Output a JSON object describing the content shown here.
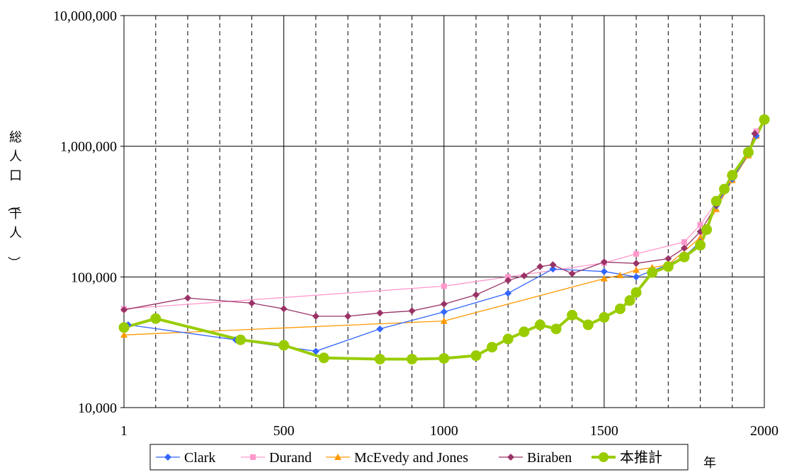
{
  "chart_data": {
    "type": "line",
    "title": "",
    "xlabel": "年",
    "ylabel": "総人口（千人）",
    "y_scale": "log",
    "xlim": [
      1,
      2000
    ],
    "ylim": [
      10000,
      10000000
    ],
    "x_ticks": [
      "1",
      "500",
      "1000",
      "1500",
      "2000"
    ],
    "y_ticks": [
      "10,000",
      "100,000",
      "1,000,000",
      "10,000,000"
    ],
    "grid": "vertical dashed every 100 years; solid at 500-year marks and at each decade of y",
    "legend_position": "bottom",
    "series": [
      {
        "name": "Clark",
        "color": "#3366ff",
        "marker": "diamond",
        "points": [
          [
            14,
            43000
          ],
          [
            350,
            33000
          ],
          [
            600,
            27000
          ],
          [
            800,
            40000
          ],
          [
            1000,
            54000
          ],
          [
            1200,
            75000
          ],
          [
            1340,
            115000
          ],
          [
            1500,
            110000
          ],
          [
            1600,
            100000
          ],
          [
            1700,
            124000
          ],
          [
            1750,
            143000
          ],
          [
            1800,
            185000
          ],
          [
            1850,
            350000
          ],
          [
            1900,
            560000
          ],
          [
            1950,
            870000
          ],
          [
            1975,
            1200000
          ],
          [
            2000,
            1570000
          ]
        ]
      },
      {
        "name": "Durand",
        "color": "#ff99cc",
        "marker": "square",
        "points": [
          [
            1,
            57000
          ],
          [
            1000,
            85000
          ],
          [
            1200,
            100000
          ],
          [
            1500,
            128000
          ],
          [
            1600,
            150000
          ],
          [
            1750,
            185000
          ],
          [
            1800,
            250000
          ],
          [
            1900,
            560000
          ],
          [
            1950,
            870000
          ],
          [
            1975,
            1300000
          ],
          [
            2000,
            1570000
          ]
        ]
      },
      {
        "name": "McEvedy and Jones",
        "color": "#ff9900",
        "marker": "triangle",
        "points": [
          [
            1,
            36000
          ],
          [
            1000,
            46000
          ],
          [
            1500,
            97000
          ],
          [
            1550,
            103000
          ],
          [
            1600,
            113000
          ],
          [
            1650,
            118000
          ],
          [
            1700,
            124000
          ],
          [
            1800,
            200000
          ],
          [
            1850,
            330000
          ],
          [
            1900,
            550000
          ],
          [
            1950,
            850000
          ],
          [
            1975,
            1200000
          ],
          [
            2000,
            1570000
          ]
        ]
      },
      {
        "name": "Biraben",
        "color": "#993366",
        "marker": "diamond",
        "points": [
          [
            1,
            56000
          ],
          [
            200,
            69000
          ],
          [
            400,
            63000
          ],
          [
            500,
            57000
          ],
          [
            600,
            50000
          ],
          [
            700,
            50000
          ],
          [
            800,
            53000
          ],
          [
            900,
            55000
          ],
          [
            1000,
            62000
          ],
          [
            1100,
            73000
          ],
          [
            1200,
            94000
          ],
          [
            1250,
            102000
          ],
          [
            1300,
            120000
          ],
          [
            1340,
            124000
          ],
          [
            1400,
            106000
          ],
          [
            1500,
            130000
          ],
          [
            1600,
            127000
          ],
          [
            1700,
            138000
          ],
          [
            1750,
            166000
          ],
          [
            1800,
            222000
          ],
          [
            1850,
            355000
          ],
          [
            1900,
            580000
          ],
          [
            1950,
            900000
          ],
          [
            1970,
            1250000
          ],
          [
            2000,
            1570000
          ]
        ]
      },
      {
        "name": "本推計",
        "color": "#99cc00",
        "marker": "circle",
        "points": [
          [
            1,
            41000
          ],
          [
            100,
            48000
          ],
          [
            365,
            33000
          ],
          [
            500,
            30000
          ],
          [
            625,
            24000
          ],
          [
            800,
            23500
          ],
          [
            900,
            23500
          ],
          [
            1000,
            23800
          ],
          [
            1100,
            25000
          ],
          [
            1150,
            29000
          ],
          [
            1200,
            33500
          ],
          [
            1250,
            38000
          ],
          [
            1300,
            43000
          ],
          [
            1350,
            40000
          ],
          [
            1400,
            51000
          ],
          [
            1450,
            43000
          ],
          [
            1500,
            49000
          ],
          [
            1550,
            57000
          ],
          [
            1580,
            66000
          ],
          [
            1600,
            76000
          ],
          [
            1650,
            108000
          ],
          [
            1700,
            120000
          ],
          [
            1750,
            142000
          ],
          [
            1800,
            175000
          ],
          [
            1820,
            230000
          ],
          [
            1850,
            380000
          ],
          [
            1875,
            470000
          ],
          [
            1900,
            600000
          ],
          [
            1950,
            900000
          ],
          [
            2000,
            1600000
          ]
        ]
      }
    ]
  }
}
